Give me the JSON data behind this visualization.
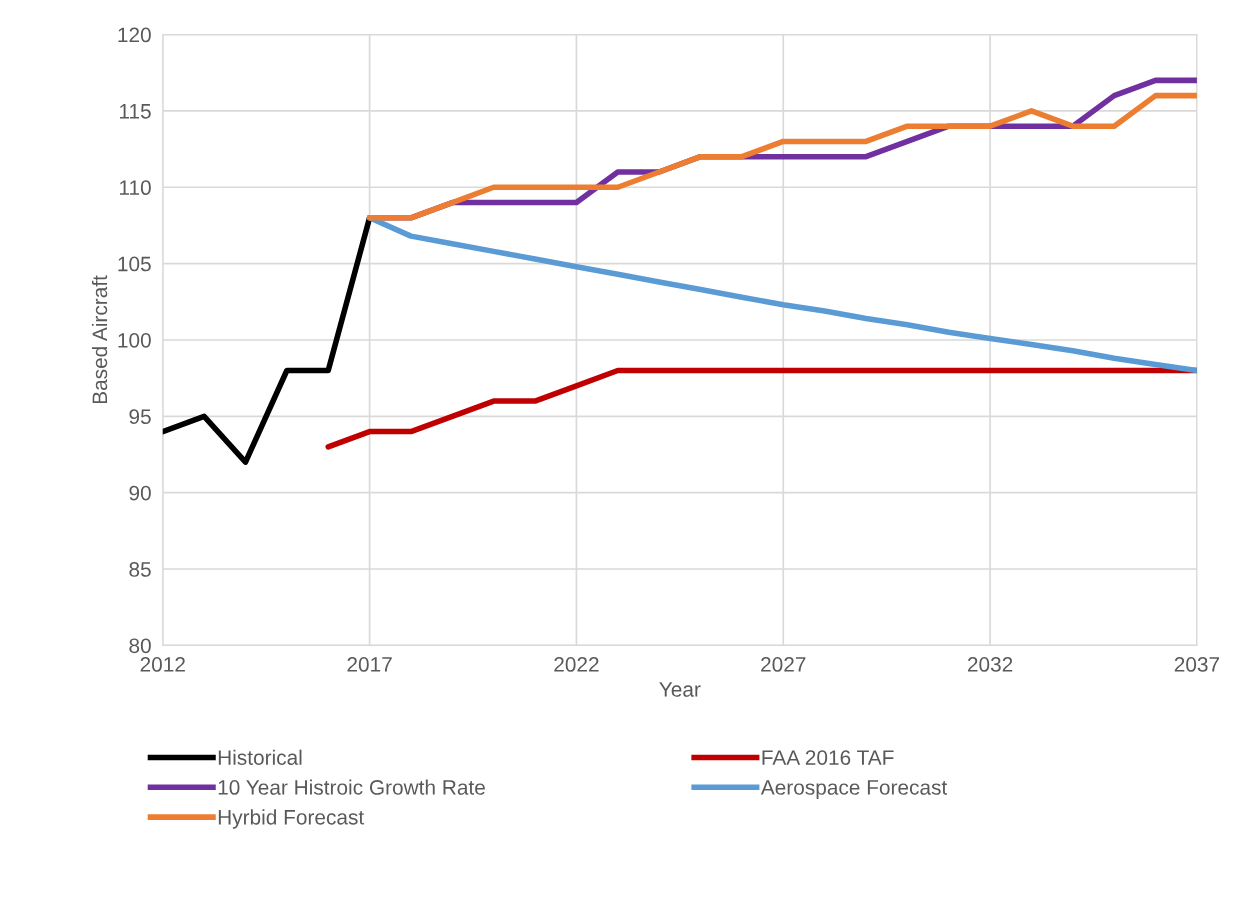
{
  "chart_data": {
    "type": "line",
    "xlabel": "Year",
    "ylabel": "Based Aircraft",
    "xlim": [
      2012,
      2037
    ],
    "xticks": [
      2012,
      2017,
      2022,
      2027,
      2032,
      2037
    ],
    "ylim": [
      80,
      120
    ],
    "yticks": [
      80,
      85,
      90,
      95,
      100,
      105,
      110,
      115,
      120
    ],
    "grid": true,
    "legend": "bottom",
    "marker": "none",
    "line_style": "solid",
    "series": [
      {
        "name": "Historical",
        "color": "#000000",
        "x": [
          2012,
          2013,
          2014,
          2015,
          2016,
          2017
        ],
        "values": [
          94,
          95,
          92,
          98,
          98,
          108
        ]
      },
      {
        "name": "FAA 2016 TAF",
        "color": "#c00000",
        "x": [
          2016,
          2017,
          2018,
          2019,
          2020,
          2021,
          2022,
          2023,
          2024,
          2025,
          2026,
          2027,
          2028,
          2029,
          2030,
          2031,
          2032,
          2033,
          2034,
          2035,
          2036,
          2037
        ],
        "values": [
          93,
          94,
          94,
          95,
          96,
          96,
          97,
          98,
          98,
          98,
          98,
          98,
          98,
          98,
          98,
          98,
          98,
          98,
          98,
          98,
          98,
          98
        ]
      },
      {
        "name": "10 Year Histroic Growth Rate",
        "color": "#7030a0",
        "x": [
          2017,
          2018,
          2019,
          2020,
          2021,
          2022,
          2023,
          2024,
          2025,
          2026,
          2027,
          2028,
          2029,
          2030,
          2031,
          2032,
          2033,
          2034,
          2035,
          2036,
          2037
        ],
        "values": [
          108,
          108,
          109,
          109,
          109,
          109,
          111,
          111,
          112,
          112,
          112,
          112,
          112,
          113,
          114,
          114,
          114,
          114,
          116,
          117,
          117
        ]
      },
      {
        "name": "Aerospace Forecast",
        "color": "#5b9bd5",
        "x": [
          2017,
          2018,
          2019,
          2020,
          2021,
          2022,
          2023,
          2024,
          2025,
          2026,
          2027,
          2028,
          2029,
          2030,
          2031,
          2032,
          2033,
          2034,
          2035,
          2036,
          2037
        ],
        "values": [
          108,
          106.8,
          106.3,
          105.8,
          105.3,
          104.8,
          104.3,
          103.8,
          103.3,
          102.8,
          102.3,
          101.9,
          101.4,
          101.0,
          100.5,
          100.1,
          99.7,
          99.3,
          98.8,
          98.4,
          98.0
        ]
      },
      {
        "name": "Hyrbid Forecast",
        "color": "#ed7d31",
        "x": [
          2017,
          2018,
          2019,
          2020,
          2021,
          2022,
          2023,
          2024,
          2025,
          2026,
          2027,
          2028,
          2029,
          2030,
          2031,
          2032,
          2033,
          2034,
          2035,
          2036,
          2037
        ],
        "values": [
          108,
          108,
          109,
          110,
          110,
          110,
          110,
          111,
          112,
          112,
          113,
          113,
          113,
          114,
          114,
          114,
          115,
          114,
          114,
          116,
          116
        ]
      }
    ]
  }
}
